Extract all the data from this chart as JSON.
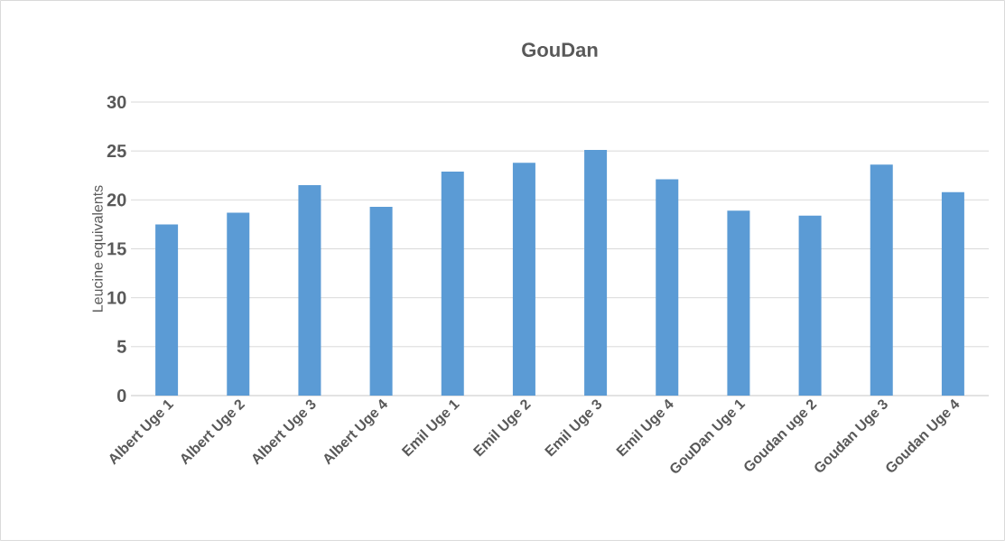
{
  "chart_data": {
    "type": "bar",
    "title": "GouDan",
    "ylabel": "Leucine equivalents",
    "categories": [
      "Albert Uge 1",
      "Albert Uge 2",
      "Albert Uge 3",
      "Albert Uge 4",
      "Emil Uge 1",
      "Emil Uge 2",
      "Emil Uge 3",
      "Emil Uge 4",
      "GouDan Uge 1",
      "Goudan uge 2",
      "Goudan Uge 3",
      "Goudan Uge 4"
    ],
    "values": [
      17.5,
      18.7,
      21.5,
      19.3,
      22.9,
      23.8,
      25.1,
      22.1,
      18.9,
      18.4,
      23.6,
      20.8
    ],
    "color": "#5b9bd5",
    "ylim": [
      0,
      30
    ],
    "yticks": [
      0,
      5,
      10,
      15,
      20,
      25,
      30
    ],
    "grid": "y"
  }
}
